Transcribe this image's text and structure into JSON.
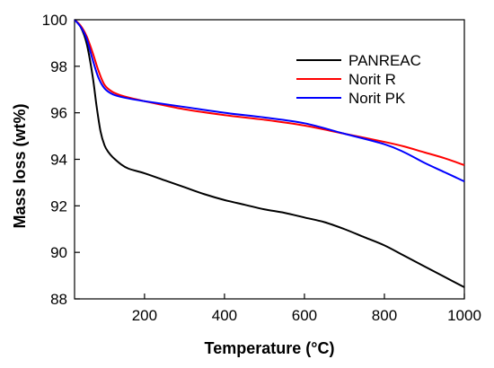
{
  "chart_data": {
    "type": "line",
    "title": "",
    "xlabel": "Temperature (°C)",
    "ylabel": "Mass loss (wt%)",
    "xlim": [
      25,
      1000
    ],
    "ylim": [
      88,
      100
    ],
    "xticks": [
      200,
      400,
      600,
      800,
      1000
    ],
    "yticks": [
      88,
      90,
      92,
      94,
      96,
      98,
      100
    ],
    "grid": false,
    "legend_position": "top-right",
    "series": [
      {
        "name": "PANREAC",
        "color": "#000000",
        "x": [
          25,
          40,
          55,
          70,
          80,
          90,
          100,
          110,
          120,
          140,
          160,
          200,
          250,
          300,
          350,
          400,
          450,
          500,
          550,
          600,
          650,
          700,
          750,
          800,
          850,
          900,
          950,
          1000
        ],
        "y": [
          100,
          99.7,
          99.0,
          97.6,
          96.3,
          95.2,
          94.6,
          94.3,
          94.1,
          93.8,
          93.6,
          93.4,
          93.1,
          92.8,
          92.5,
          92.25,
          92.05,
          91.85,
          91.7,
          91.5,
          91.3,
          91.0,
          90.65,
          90.3,
          89.85,
          89.4,
          88.95,
          88.5
        ]
      },
      {
        "name": "Norit R",
        "color": "#ff0000",
        "x": [
          25,
          40,
          55,
          70,
          85,
          100,
          120,
          150,
          200,
          300,
          400,
          500,
          600,
          700,
          800,
          850,
          900,
          950,
          1000
        ],
        "y": [
          100,
          99.75,
          99.3,
          98.6,
          97.8,
          97.2,
          96.9,
          96.7,
          96.5,
          96.15,
          95.9,
          95.7,
          95.45,
          95.1,
          94.75,
          94.55,
          94.3,
          94.05,
          93.75
        ]
      },
      {
        "name": "Norit PK",
        "color": "#0000ff",
        "x": [
          25,
          40,
          55,
          70,
          85,
          100,
          120,
          150,
          200,
          300,
          400,
          500,
          600,
          700,
          800,
          850,
          900,
          950,
          1000
        ],
        "y": [
          100,
          99.7,
          99.2,
          98.3,
          97.5,
          97.05,
          96.8,
          96.65,
          96.5,
          96.25,
          96.0,
          95.8,
          95.55,
          95.1,
          94.65,
          94.3,
          93.85,
          93.45,
          93.05
        ]
      }
    ]
  }
}
